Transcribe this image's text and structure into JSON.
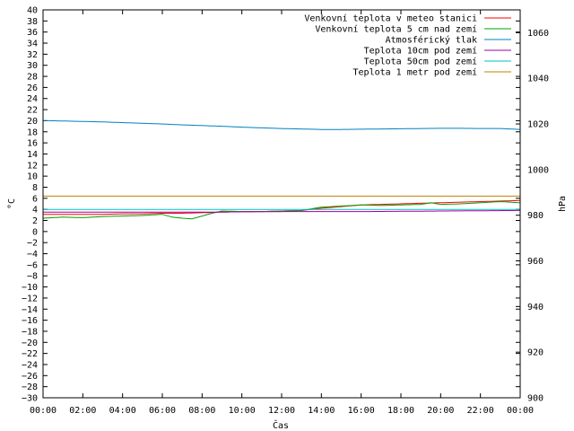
{
  "chart_data": {
    "type": "line",
    "title": "",
    "xlabel": "Čas",
    "ylabel": "°C",
    "y2label": "hPa",
    "grid": false,
    "legend_position": "top-right",
    "x_ticks": [
      "00:00",
      "02:00",
      "04:00",
      "06:00",
      "08:00",
      "10:00",
      "12:00",
      "14:00",
      "16:00",
      "18:00",
      "20:00",
      "22:00",
      "00:00"
    ],
    "x_range_hours": [
      0,
      24
    ],
    "y_range": [
      -30,
      40
    ],
    "y_tick_step": 2,
    "y2_range": [
      900,
      1070
    ],
    "y2_ticks": [
      900,
      920,
      940,
      960,
      980,
      1000,
      1020,
      1040,
      1060
    ],
    "series": [
      {
        "name": "Venkovní teplota v meteo stanici",
        "color": "#ff0000",
        "axis": "left",
        "points": [
          [
            0,
            3.1
          ],
          [
            1,
            3.1
          ],
          [
            2,
            3.1
          ],
          [
            3,
            3.1
          ],
          [
            4,
            3.2
          ],
          [
            5,
            3.2
          ],
          [
            6,
            3.3
          ],
          [
            7,
            3.3
          ],
          [
            8,
            3.4
          ],
          [
            9,
            3.5
          ],
          [
            10,
            3.6
          ],
          [
            11,
            3.6
          ],
          [
            12,
            3.7
          ],
          [
            13,
            3.8
          ],
          [
            14,
            4.2
          ],
          [
            15,
            4.5
          ],
          [
            16,
            4.8
          ],
          [
            17,
            4.9
          ],
          [
            18,
            5.0
          ],
          [
            19,
            5.1
          ],
          [
            20,
            5.2
          ],
          [
            21,
            5.3
          ],
          [
            22,
            5.4
          ],
          [
            23,
            5.5
          ],
          [
            24,
            5.6
          ]
        ]
      },
      {
        "name": "Venkovní teplota 5 cm nad zemí",
        "color": "#00a000",
        "axis": "left",
        "points": [
          [
            0,
            2.4
          ],
          [
            1,
            2.6
          ],
          [
            2,
            2.5
          ],
          [
            3,
            2.7
          ],
          [
            4,
            2.8
          ],
          [
            5,
            2.9
          ],
          [
            6,
            3.1
          ],
          [
            6.5,
            2.6
          ],
          [
            7,
            2.4
          ],
          [
            7.5,
            2.3
          ],
          [
            8,
            2.8
          ],
          [
            8.5,
            3.3
          ],
          [
            9,
            3.7
          ],
          [
            10,
            3.6
          ],
          [
            11,
            3.6
          ],
          [
            12,
            3.7
          ],
          [
            13,
            3.8
          ],
          [
            14,
            4.4
          ],
          [
            15,
            4.6
          ],
          [
            16,
            4.8
          ],
          [
            17,
            4.7
          ],
          [
            18,
            4.8
          ],
          [
            19,
            4.9
          ],
          [
            19.5,
            5.2
          ],
          [
            20,
            4.9
          ],
          [
            21,
            5.0
          ],
          [
            22,
            5.2
          ],
          [
            23,
            5.4
          ],
          [
            24,
            5.2
          ]
        ]
      },
      {
        "name": "Atmosférický tlak",
        "color": "#0080c0",
        "axis": "right",
        "points": [
          [
            0,
            1021.5
          ],
          [
            1,
            1021.3
          ],
          [
            2,
            1021.1
          ],
          [
            3,
            1020.9
          ],
          [
            4,
            1020.6
          ],
          [
            5,
            1020.3
          ],
          [
            6,
            1020.0
          ],
          [
            7,
            1019.6
          ],
          [
            8,
            1019.3
          ],
          [
            9,
            1019.0
          ],
          [
            10,
            1018.6
          ],
          [
            11,
            1018.3
          ],
          [
            12,
            1018.0
          ],
          [
            13,
            1017.8
          ],
          [
            14,
            1017.6
          ],
          [
            15,
            1017.6
          ],
          [
            16,
            1017.7
          ],
          [
            17,
            1017.8
          ],
          [
            18,
            1017.9
          ],
          [
            19,
            1018.0
          ],
          [
            20,
            1018.1
          ],
          [
            21,
            1018.1
          ],
          [
            22,
            1018.0
          ],
          [
            23,
            1018.0
          ],
          [
            24,
            1017.6
          ]
        ]
      },
      {
        "name": "Teplota 10cm pod zemí",
        "color": "#a000a0",
        "axis": "left",
        "points": [
          [
            0,
            3.5
          ],
          [
            4,
            3.5
          ],
          [
            8,
            3.5
          ],
          [
            12,
            3.6
          ],
          [
            16,
            3.6
          ],
          [
            20,
            3.7
          ],
          [
            24,
            3.8
          ]
        ]
      },
      {
        "name": "Teplota 50cm pod zemí",
        "color": "#00c0c0",
        "axis": "left",
        "points": [
          [
            0,
            4.0
          ],
          [
            4,
            4.0
          ],
          [
            8,
            4.0
          ],
          [
            12,
            4.0
          ],
          [
            16,
            4.0
          ],
          [
            20,
            4.0
          ],
          [
            24,
            4.0
          ]
        ]
      },
      {
        "name": "Teplota 1 metr pod zemí",
        "color": "#c08000",
        "axis": "left",
        "points": [
          [
            0,
            6.4
          ],
          [
            24,
            6.4
          ]
        ]
      }
    ]
  }
}
